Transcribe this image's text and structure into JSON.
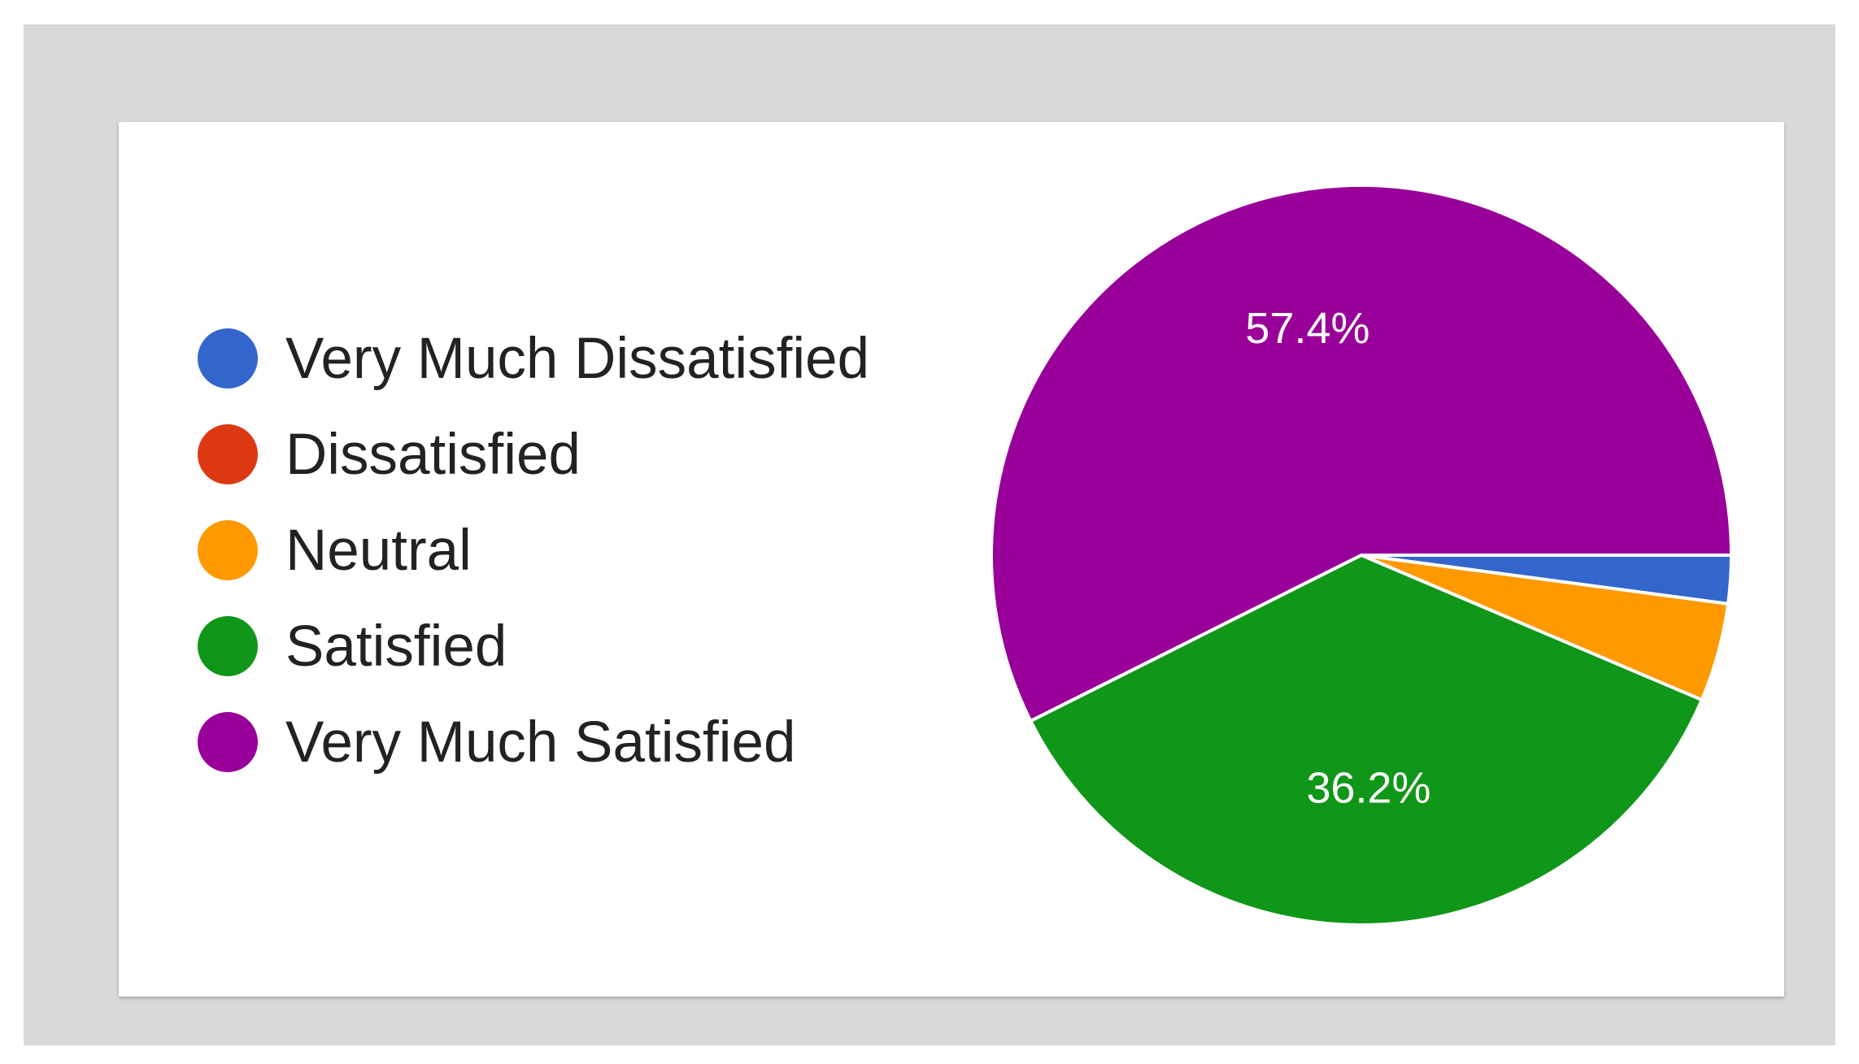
{
  "chart_data": {
    "type": "pie",
    "categories": [
      "Very Much Dissatisfied",
      "Dissatisfied",
      "Neutral",
      "Satisfied",
      "Very Much Satisfied"
    ],
    "values": [
      2.1,
      0,
      4.3,
      36.2,
      57.4
    ],
    "colors": [
      "#3366cc",
      "#dc3912",
      "#ff9900",
      "#109618",
      "#990099"
    ],
    "data_labels": [
      "",
      "",
      "",
      "36.2%",
      "57.4%"
    ],
    "legend_position": "left",
    "start_angle": "3 o'clock, clockwise"
  }
}
